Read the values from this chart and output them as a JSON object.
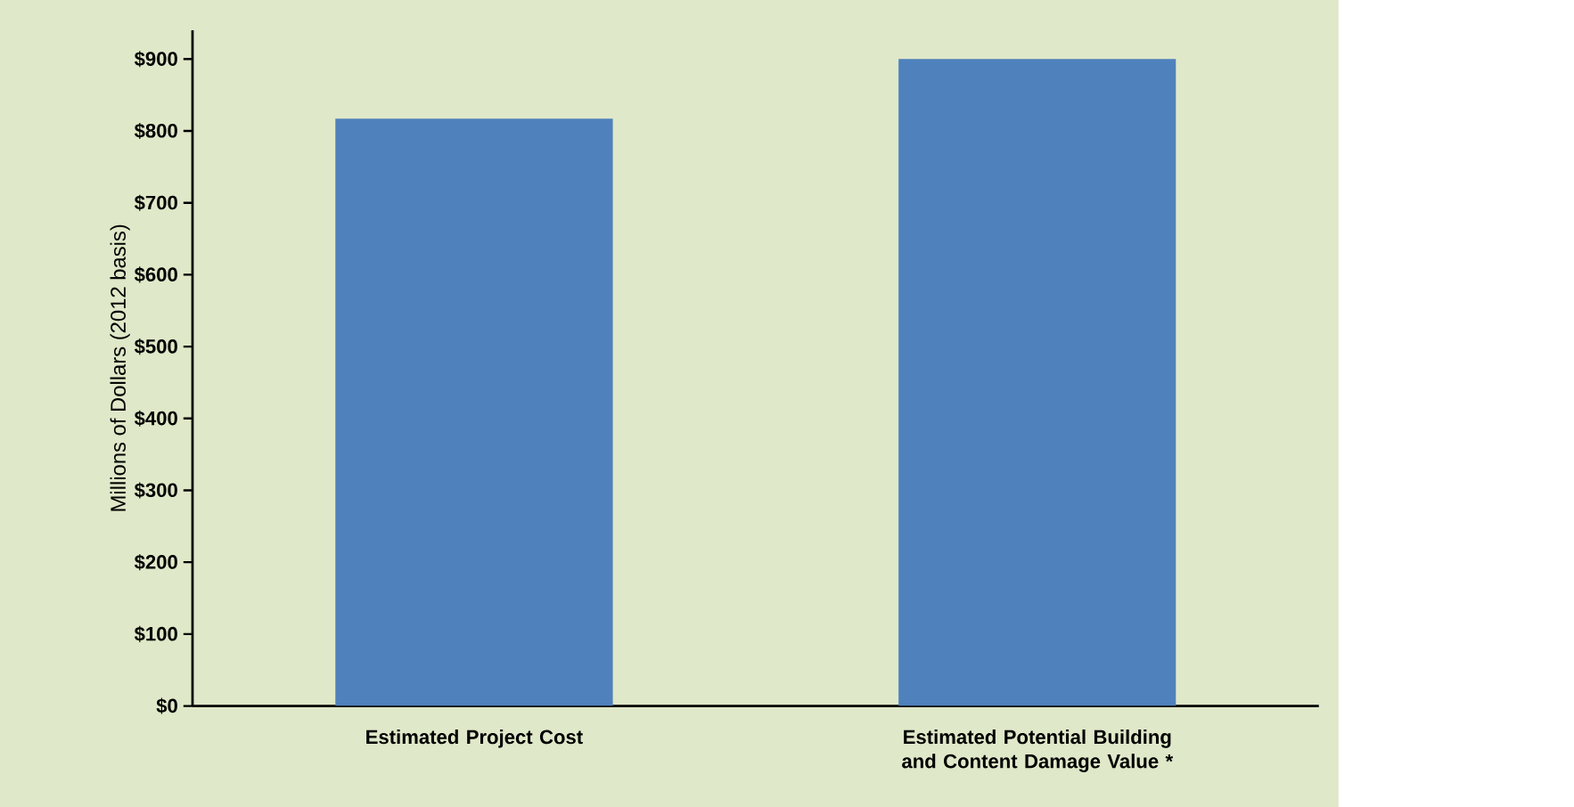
{
  "chart_data": {
    "type": "bar",
    "ylabel": "Millions of Dollars (2012 basis)",
    "categories": [
      "Estimated Project Cost",
      "Estimated Potential Building and Content Damage Value *"
    ],
    "values": [
      817,
      900
    ],
    "color": "#4f81bd",
    "ylim": [
      0,
      940
    ],
    "yticks": [
      {
        "value": 0,
        "label": "$0"
      },
      {
        "value": 100,
        "label": "$100"
      },
      {
        "value": 200,
        "label": "$200"
      },
      {
        "value": 300,
        "label": "$300"
      },
      {
        "value": 400,
        "label": "$400"
      },
      {
        "value": 500,
        "label": "$500"
      },
      {
        "value": 600,
        "label": "$600"
      },
      {
        "value": 700,
        "label": "$700"
      },
      {
        "value": 800,
        "label": "$800"
      },
      {
        "value": 900,
        "label": "$900"
      }
    ],
    "grid": false
  }
}
